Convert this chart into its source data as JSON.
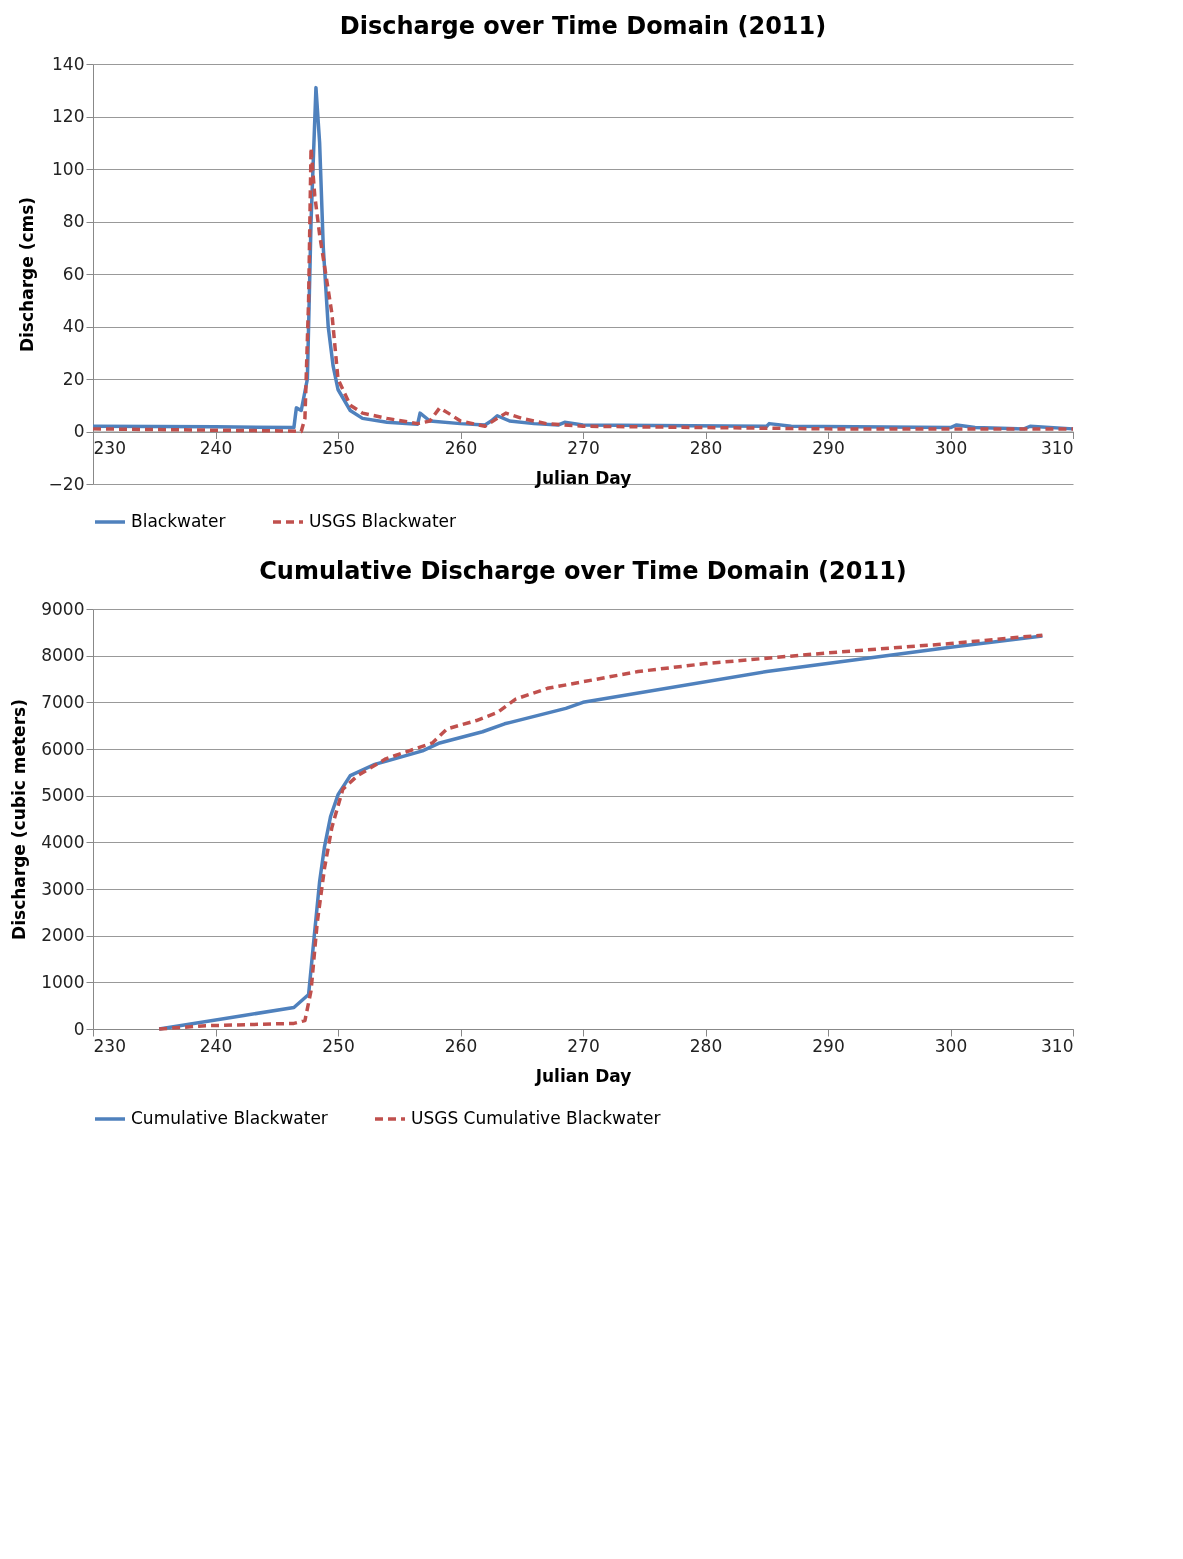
{
  "chart_data": [
    {
      "type": "line",
      "title": "Discharge over Time Domain (2011)",
      "xlabel": "Julian Day",
      "ylabel": "Discharge (cms)",
      "xlim": [
        230,
        310
      ],
      "xticks": [
        230,
        240,
        250,
        260,
        270,
        280,
        290,
        300,
        310
      ],
      "ylim": [
        -20,
        140
      ],
      "yticks": [
        -20,
        0,
        20,
        40,
        60,
        80,
        100,
        120,
        140
      ],
      "grid": "y",
      "legend": "bottom",
      "series": [
        {
          "name": "Blackwater",
          "color": "#4f81bd",
          "line_style": "solid",
          "x": [
            230,
            240,
            246.4,
            246.6,
            247,
            247.5,
            247.8,
            248.2,
            248.5,
            248.8,
            249.2,
            249.6,
            250,
            251,
            252,
            254,
            256.5,
            256.7,
            257.5,
            260,
            262,
            262.5,
            263,
            264,
            266,
            268,
            268.5,
            270,
            285,
            285.2,
            287,
            300,
            300.5,
            302,
            306,
            306.5,
            310
          ],
          "values": [
            2,
            1.8,
            1.5,
            9,
            8,
            20,
            80,
            131,
            110,
            70,
            40,
            25,
            16,
            8,
            5,
            3.5,
            2.8,
            7,
            4,
            3,
            2.5,
            4,
            6,
            4,
            3,
            2.5,
            3.5,
            2.5,
            2,
            3,
            2,
            1.5,
            2.5,
            1.5,
            1,
            2,
            1
          ]
        },
        {
          "name": "USGS Blackwater",
          "color": "#c0504d",
          "line_style": "dashed",
          "x": [
            230,
            240,
            246,
            247,
            247.3,
            247.6,
            247.8,
            248.1,
            248.5,
            249,
            249.5,
            250,
            251,
            252,
            254,
            256.5,
            257.5,
            258.3,
            259,
            260,
            262,
            263,
            263.7,
            265,
            267,
            270,
            280,
            290,
            310
          ],
          "values": [
            1,
            0.5,
            0.2,
            0,
            5,
            50,
            108,
            90,
            75,
            60,
            45,
            20,
            10,
            7,
            5,
            3,
            4,
            9,
            7,
            4,
            2,
            5,
            7,
            5,
            3,
            2,
            1.5,
            1,
            1
          ]
        }
      ]
    },
    {
      "type": "line",
      "title": "Cumulative Discharge over Time Domain (2011)",
      "xlabel": "Julian Day",
      "ylabel": "Discharge (cubic meters)",
      "xlim": [
        230,
        310
      ],
      "xticks": [
        230,
        240,
        250,
        260,
        270,
        280,
        290,
        300,
        310
      ],
      "ylim": [
        0,
        9000
      ],
      "yticks": [
        0,
        1000,
        2000,
        3000,
        4000,
        5000,
        6000,
        7000,
        8000,
        9000
      ],
      "grid": "y",
      "legend": "bottom",
      "series": [
        {
          "name": "Cumulative Blackwater",
          "color": "#4f81bd",
          "line_style": "solid",
          "x": [
            235.4,
            246.4,
            247.6,
            248.06,
            248.5,
            248.9,
            249.4,
            250.0,
            251.0,
            253.0,
            256.9,
            258.3,
            261.8,
            263.6,
            268.6,
            270,
            285,
            300,
            307.5
          ],
          "values": [
            0,
            460,
            740,
            1990,
            3160,
            3910,
            4560,
            5020,
            5430,
            5670,
            5960,
            6130,
            6370,
            6540,
            6870,
            7000,
            7660,
            8180,
            8420
          ]
        },
        {
          "name": "USGS Cumulative Blackwater",
          "color": "#c0504d",
          "line_style": "dashed",
          "x": [
            235.4,
            239.2,
            246.4,
            247.3,
            247.8,
            248.3,
            248.9,
            249.5,
            250.4,
            251.6,
            253.9,
            257.7,
            258.9,
            261.3,
            263.0,
            264.5,
            267.1,
            274.5,
            280,
            290,
            300,
            307.5
          ],
          "values": [
            0,
            70,
            120,
            180,
            820,
            2270,
            3450,
            4320,
            5140,
            5430,
            5790,
            6130,
            6430,
            6610,
            6780,
            7070,
            7300,
            7660,
            7830,
            8060,
            8260,
            8440
          ]
        }
      ]
    }
  ]
}
